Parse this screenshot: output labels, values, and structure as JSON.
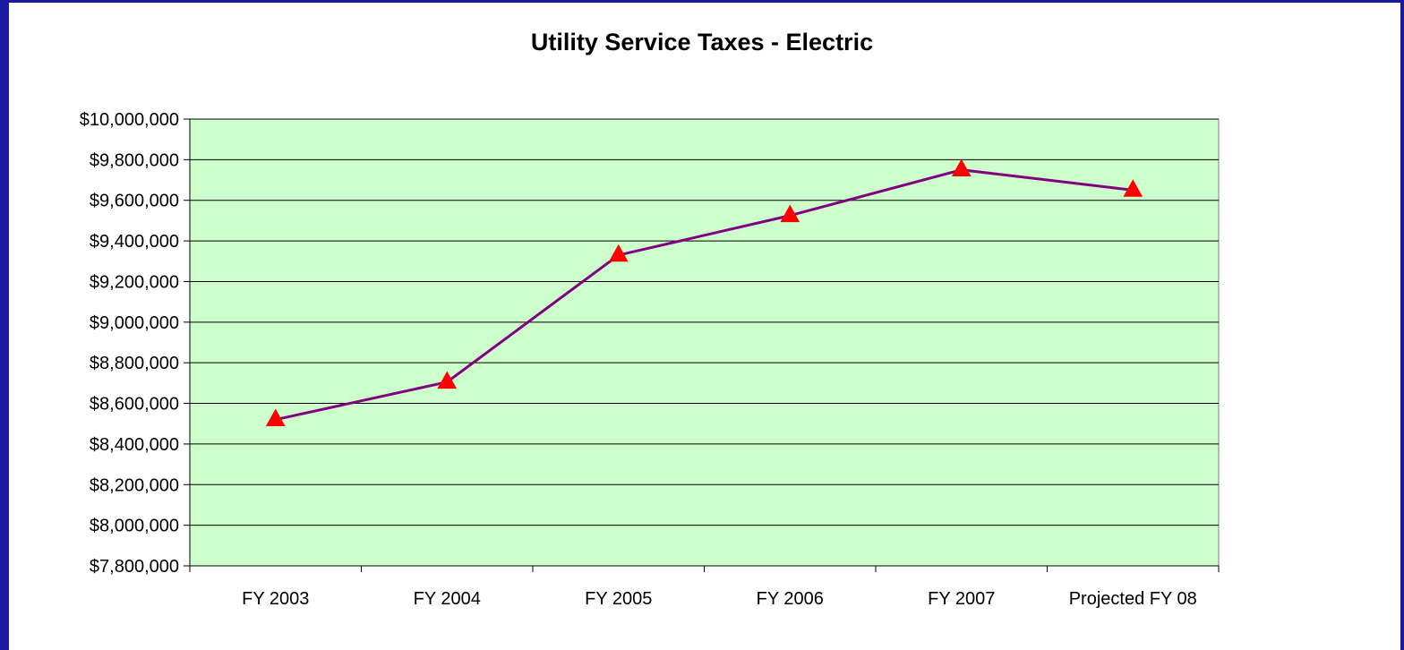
{
  "colors": {
    "frame": "#1a1a9c",
    "plot_background": "#ccffcc",
    "line": "#800080",
    "marker": "#ff0000",
    "grid": "#000000"
  },
  "chart_data": {
    "type": "line",
    "title": "Utility Service Taxes - Electric",
    "xlabel": "",
    "ylabel": "",
    "categories": [
      "FY 2003",
      "FY 2004",
      "FY 2005",
      "FY 2006",
      "FY 2007",
      "Projected FY 08"
    ],
    "series": [
      {
        "values": [
          8520000,
          8705000,
          9330000,
          9525000,
          9750000,
          9650000
        ],
        "marker": "triangle"
      }
    ],
    "ylim": [
      7800000,
      10000000
    ],
    "yticks": [
      7800000,
      8000000,
      8200000,
      8400000,
      8600000,
      8800000,
      9000000,
      9200000,
      9400000,
      9600000,
      9800000,
      10000000
    ],
    "ytick_labels": [
      "$7,800,000",
      "$8,000,000",
      "$8,200,000",
      "$8,400,000",
      "$8,600,000",
      "$8,800,000",
      "$9,000,000",
      "$9,200,000",
      "$9,400,000",
      "$9,600,000",
      "$9,800,000",
      "$10,000,000"
    ],
    "grid": true,
    "legend": "none"
  }
}
